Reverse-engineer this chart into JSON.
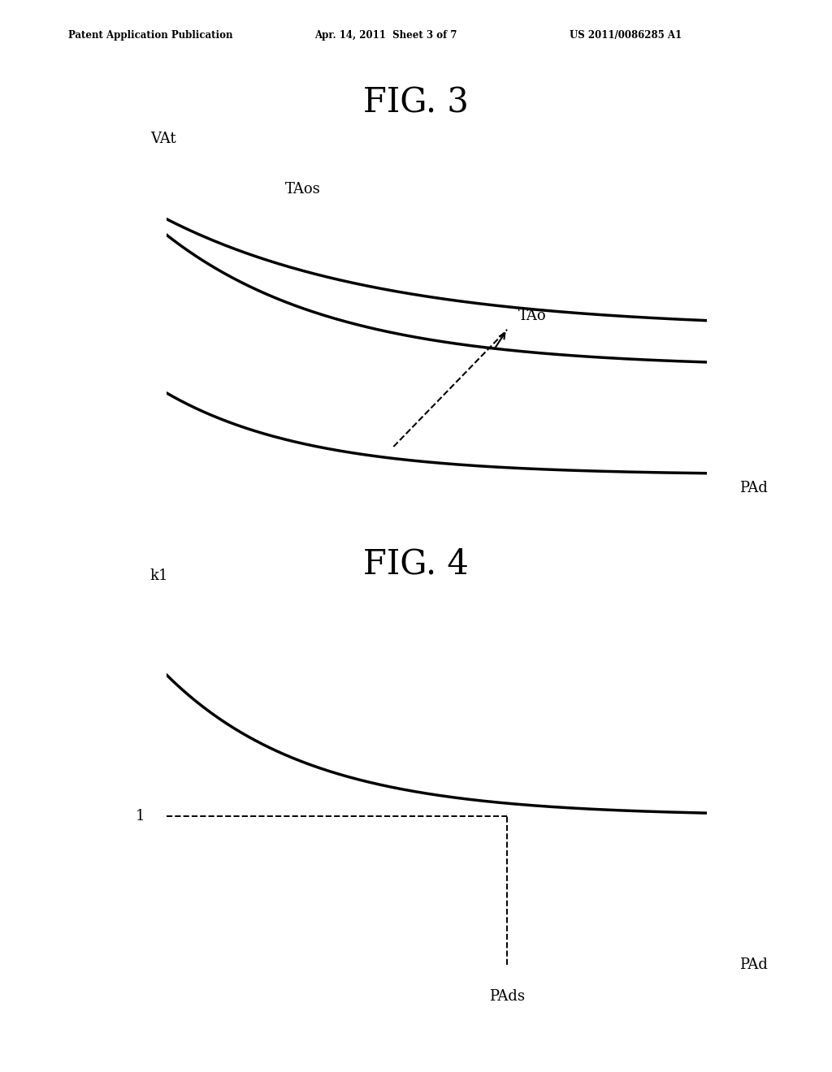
{
  "fig3_title": "FIG. 3",
  "fig4_title": "FIG. 4",
  "header_left": "Patent Application Publication",
  "header_mid": "Apr. 14, 2011  Sheet 3 of 7",
  "header_right": "US 2011/0086285 A1",
  "fig3_ylabel": "VAt",
  "fig3_xlabel": "PAd",
  "fig3_label_taos": "TAos",
  "fig3_label_tao": "TAo",
  "fig4_ylabel": "k1",
  "fig4_xlabel": "PAd",
  "fig4_label_pads": "PAds",
  "fig4_label_1": "1",
  "background_color": "#ffffff",
  "line_color": "#000000"
}
